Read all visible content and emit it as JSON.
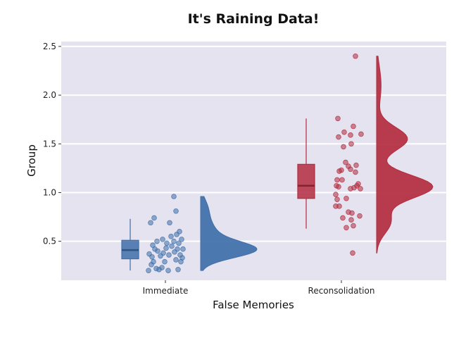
{
  "chart_data": {
    "type": "raincloud",
    "title": "It's Raining Data!",
    "xlabel": "False Memories",
    "ylabel": "Group",
    "categories": [
      "Immediate",
      "Reconsolidation"
    ],
    "ylim": [
      0.1,
      2.55
    ],
    "yticks": [
      0.5,
      1.0,
      1.5,
      2.0,
      2.5
    ],
    "ytick_labels": [
      "0.5",
      "1.0",
      "1.5",
      "2.0",
      "2.5"
    ],
    "grid": true,
    "legend": "none",
    "colors": {
      "panel": "#e5e3ef",
      "grid": "#ffffff"
    },
    "series": [
      {
        "category": "Immediate",
        "color": "#3f6faa",
        "box": {
          "whisker_low": 0.2,
          "q1": 0.32,
          "median": 0.41,
          "q3": 0.51,
          "whisker_high": 0.73
        },
        "density": {
          "min": 0.2,
          "max": 0.96,
          "peak": 0.41
        },
        "points": [
          {
            "j": -0.24,
            "y": 0.2
          },
          {
            "j": -0.2,
            "y": 0.26
          },
          {
            "j": -0.17,
            "y": 0.29
          },
          {
            "j": -0.13,
            "y": 0.22
          },
          {
            "j": -0.09,
            "y": 0.21
          },
          {
            "j": -0.05,
            "y": 0.23
          },
          {
            "j": -0.01,
            "y": 0.29
          },
          {
            "j": 0.04,
            "y": 0.2
          },
          {
            "j": 0.18,
            "y": 0.21
          },
          {
            "j": 0.22,
            "y": 0.29
          },
          {
            "j": -0.23,
            "y": 0.37
          },
          {
            "j": -0.19,
            "y": 0.34
          },
          {
            "j": -0.15,
            "y": 0.42
          },
          {
            "j": -0.11,
            "y": 0.4
          },
          {
            "j": -0.07,
            "y": 0.35
          },
          {
            "j": -0.03,
            "y": 0.38
          },
          {
            "j": 0.01,
            "y": 0.43
          },
          {
            "j": 0.05,
            "y": 0.36
          },
          {
            "j": 0.09,
            "y": 0.45
          },
          {
            "j": 0.13,
            "y": 0.39
          },
          {
            "j": 0.17,
            "y": 0.42
          },
          {
            "j": 0.21,
            "y": 0.36
          },
          {
            "j": 0.24,
            "y": 0.33
          },
          {
            "j": 0.15,
            "y": 0.31
          },
          {
            "j": -0.18,
            "y": 0.46
          },
          {
            "j": -0.12,
            "y": 0.5
          },
          {
            "j": -0.04,
            "y": 0.52
          },
          {
            "j": 0.02,
            "y": 0.48
          },
          {
            "j": 0.08,
            "y": 0.55
          },
          {
            "j": 0.12,
            "y": 0.5
          },
          {
            "j": 0.16,
            "y": 0.57
          },
          {
            "j": 0.23,
            "y": 0.52
          },
          {
            "j": 0.2,
            "y": 0.6
          },
          {
            "j": 0.25,
            "y": 0.42
          },
          {
            "j": 0.19,
            "y": 0.48
          },
          {
            "j": -0.21,
            "y": 0.69
          },
          {
            "j": -0.16,
            "y": 0.74
          },
          {
            "j": 0.06,
            "y": 0.69
          },
          {
            "j": 0.15,
            "y": 0.81
          },
          {
            "j": 0.12,
            "y": 0.96
          }
        ]
      },
      {
        "category": "Reconsolidation",
        "color": "#b32c3f",
        "box": {
          "whisker_low": 0.63,
          "q1": 0.94,
          "median": 1.07,
          "q3": 1.29,
          "whisker_high": 1.76
        },
        "density": {
          "min": 0.38,
          "max": 2.4,
          "peak": 1.06
        },
        "points": [
          {
            "j": -0.05,
            "y": 1.76
          },
          {
            "j": 0.17,
            "y": 1.68
          },
          {
            "j": 0.04,
            "y": 1.62
          },
          {
            "j": 0.28,
            "y": 1.6
          },
          {
            "j": 0.13,
            "y": 1.59
          },
          {
            "j": -0.04,
            "y": 1.57
          },
          {
            "j": 0.03,
            "y": 1.47
          },
          {
            "j": 0.14,
            "y": 1.5
          },
          {
            "j": 0.06,
            "y": 1.31
          },
          {
            "j": 0.1,
            "y": 1.27
          },
          {
            "j": 0.0,
            "y": 1.23
          },
          {
            "j": -0.03,
            "y": 1.22
          },
          {
            "j": 0.13,
            "y": 1.24
          },
          {
            "j": 0.21,
            "y": 1.28
          },
          {
            "j": 0.2,
            "y": 1.21
          },
          {
            "j": -0.06,
            "y": 1.13
          },
          {
            "j": 0.01,
            "y": 1.13
          },
          {
            "j": 0.22,
            "y": 1.07
          },
          {
            "j": 0.27,
            "y": 1.04
          },
          {
            "j": 0.13,
            "y": 1.04
          },
          {
            "j": 0.18,
            "y": 1.05
          },
          {
            "j": 0.24,
            "y": 1.09
          },
          {
            "j": -0.07,
            "y": 1.07
          },
          {
            "j": -0.04,
            "y": 1.06
          },
          {
            "j": -0.08,
            "y": 0.98
          },
          {
            "j": -0.06,
            "y": 0.93
          },
          {
            "j": -0.03,
            "y": 0.86
          },
          {
            "j": -0.08,
            "y": 0.86
          },
          {
            "j": 0.07,
            "y": 0.94
          },
          {
            "j": 0.1,
            "y": 0.8
          },
          {
            "j": 0.15,
            "y": 0.79
          },
          {
            "j": 0.02,
            "y": 0.74
          },
          {
            "j": 0.14,
            "y": 0.72
          },
          {
            "j": 0.07,
            "y": 0.64
          },
          {
            "j": 0.17,
            "y": 0.66
          },
          {
            "j": 0.26,
            "y": 0.76
          },
          {
            "j": 0.16,
            "y": 0.38
          },
          {
            "j": 0.2,
            "y": 2.4
          }
        ]
      }
    ]
  }
}
